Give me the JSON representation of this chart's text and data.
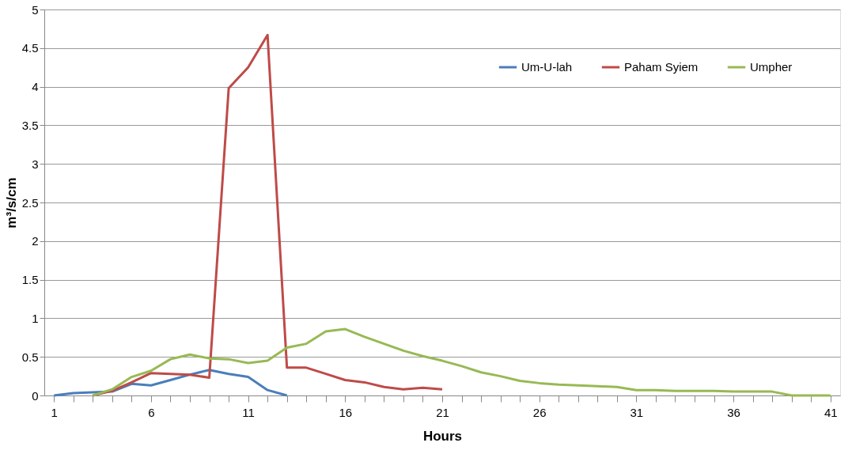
{
  "chart_data": {
    "type": "line",
    "xlabel": "Hours",
    "ylabel": "m³/s/cm",
    "categories": [
      "1",
      null,
      null,
      null,
      null,
      "6",
      null,
      null,
      null,
      null,
      "11",
      null,
      null,
      null,
      null,
      "16",
      null,
      null,
      null,
      null,
      "21",
      null,
      null,
      null,
      null,
      "26",
      null,
      null,
      null,
      null,
      "31",
      null,
      null,
      null,
      null,
      "36",
      null,
      null,
      null,
      null,
      "41"
    ],
    "series": [
      {
        "name": "Um-U-lah",
        "color": "#4a7ebb",
        "values": [
          0,
          0.03,
          0.04,
          0.05,
          0.15,
          0.13,
          0.2,
          0.27,
          0.33,
          0.28,
          0.24,
          0.07,
          0,
          null,
          null,
          null,
          null,
          null,
          null,
          null,
          null,
          null,
          null,
          null,
          null,
          null,
          null,
          null,
          null,
          null,
          null,
          null,
          null,
          null,
          null,
          null,
          null,
          null,
          null,
          null,
          null
        ]
      },
      {
        "name": "Paham Syiem",
        "color": "#be4b48",
        "values": [
          null,
          null,
          0,
          0.06,
          0.17,
          0.29,
          0.28,
          0.27,
          0.23,
          3.98,
          4.25,
          4.67,
          0.36,
          0.36,
          0.28,
          0.2,
          0.17,
          0.11,
          0.08,
          0.1,
          0.08,
          null,
          null,
          null,
          null,
          null,
          null,
          null,
          null,
          null,
          null,
          null,
          null,
          null,
          null,
          null,
          null,
          null,
          null,
          null,
          null
        ]
      },
      {
        "name": "Umpher",
        "color": "#98b954",
        "values": [
          null,
          null,
          0,
          0.08,
          0.24,
          0.32,
          0.47,
          0.53,
          0.48,
          0.47,
          0.42,
          0.45,
          0.62,
          0.67,
          0.83,
          0.86,
          0.76,
          0.67,
          0.58,
          0.51,
          0.45,
          0.38,
          0.3,
          0.25,
          0.19,
          0.16,
          0.14,
          0.13,
          0.12,
          0.11,
          0.07,
          0.07,
          0.06,
          0.06,
          0.06,
          0.05,
          0.05,
          0.05,
          0,
          0,
          0
        ]
      }
    ],
    "ylim": [
      0,
      5
    ],
    "yticks": [
      0,
      0.5,
      1,
      1.5,
      2,
      2.5,
      3,
      3.5,
      4,
      4.5,
      5
    ],
    "grid": "y",
    "legend": "top right",
    "marker": "none",
    "line_style": "solid"
  }
}
